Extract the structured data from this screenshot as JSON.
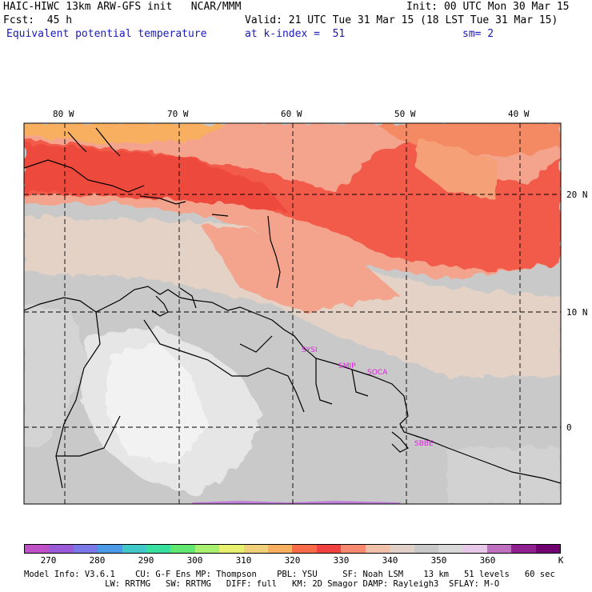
{
  "header": {
    "line1_left": "HAIC-HIWC 13km ARW-GFS init   NCAR/MMM",
    "line1_right": "Init: 00 UTC Mon 30 Mar 15",
    "line2_left": "Fcst:  45 h",
    "line2_right": "Valid: 21 UTC Tue 31 Mar 15 (18 LST Tue 31 Mar 15)",
    "line3_left": "Equivalent potential temperature",
    "line3_mid": "at k-index =  51",
    "line3_right": "sm= 2"
  },
  "map": {
    "lon_labels": [
      "80 W",
      "70 W",
      "60 W",
      "50 W",
      "40 W"
    ],
    "lat_labels": [
      "20 N",
      "10 N",
      "0"
    ],
    "stations": [
      "SYSI",
      "SMJP",
      "SOCA",
      "SBBE"
    ]
  },
  "colorbar": {
    "colors": [
      "#c050c8",
      "#9a5ad8",
      "#7a78e8",
      "#4a9ae8",
      "#40c8c8",
      "#38e0a0",
      "#60e870",
      "#a8f070",
      "#e8f070",
      "#f0d078",
      "#f8b060",
      "#f86a48",
      "#f04040",
      "#f88870",
      "#f0c0a8",
      "#e0d0c8",
      "#c8c8c8",
      "#d8d8d8",
      "#e8c8e8",
      "#c070c0",
      "#902090",
      "#700070"
    ],
    "ticks": [
      "270",
      "280",
      "290",
      "300",
      "310",
      "320",
      "330",
      "340",
      "350",
      "360",
      "K"
    ]
  },
  "footer": {
    "line1": "Model Info: V3.6.1    CU: G-F Ens MP: Thompson    PBL: YSU     SF: Noah LSM    13 km   51 levels   60 sec",
    "line2": "                LW: RRTMG   SW: RRTMG   DIFF: full   KM: 2D Smagor DAMP: Rayleigh3  SFLAY: M-O"
  }
}
